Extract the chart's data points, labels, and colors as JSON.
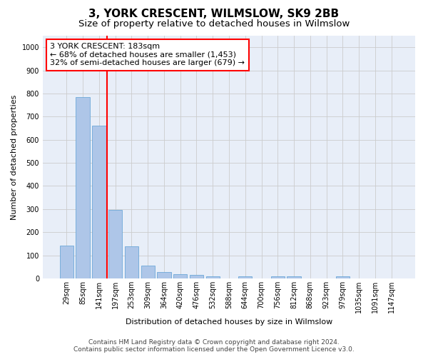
{
  "title": "3, YORK CRESCENT, WILMSLOW, SK9 2BB",
  "subtitle": "Size of property relative to detached houses in Wilmslow",
  "xlabel": "Distribution of detached houses by size in Wilmslow",
  "ylabel": "Number of detached properties",
  "bar_labels": [
    "29sqm",
    "85sqm",
    "141sqm",
    "197sqm",
    "253sqm",
    "309sqm",
    "364sqm",
    "420sqm",
    "476sqm",
    "532sqm",
    "588sqm",
    "644sqm",
    "700sqm",
    "756sqm",
    "812sqm",
    "868sqm",
    "923sqm",
    "979sqm",
    "1035sqm",
    "1091sqm",
    "1147sqm"
  ],
  "bar_values": [
    143,
    783,
    660,
    295,
    138,
    55,
    28,
    18,
    15,
    10,
    0,
    10,
    0,
    10,
    8,
    0,
    0,
    10,
    0,
    0,
    0
  ],
  "bar_color": "#aec6e8",
  "bar_edgecolor": "#5a9fd4",
  "vline_x": 2.5,
  "vline_color": "red",
  "annotation_text": "3 YORK CRESCENT: 183sqm\n← 68% of detached houses are smaller (1,453)\n32% of semi-detached houses are larger (679) →",
  "annotation_box_color": "red",
  "ylim": [
    0,
    1050
  ],
  "yticks": [
    0,
    100,
    200,
    300,
    400,
    500,
    600,
    700,
    800,
    900,
    1000
  ],
  "grid_color": "#cccccc",
  "bg_color": "#e8eef8",
  "footer1": "Contains HM Land Registry data © Crown copyright and database right 2024.",
  "footer2": "Contains public sector information licensed under the Open Government Licence v3.0.",
  "title_fontsize": 11,
  "subtitle_fontsize": 9.5,
  "label_fontsize": 8,
  "tick_fontsize": 7,
  "annotation_fontsize": 8,
  "footer_fontsize": 6.5
}
